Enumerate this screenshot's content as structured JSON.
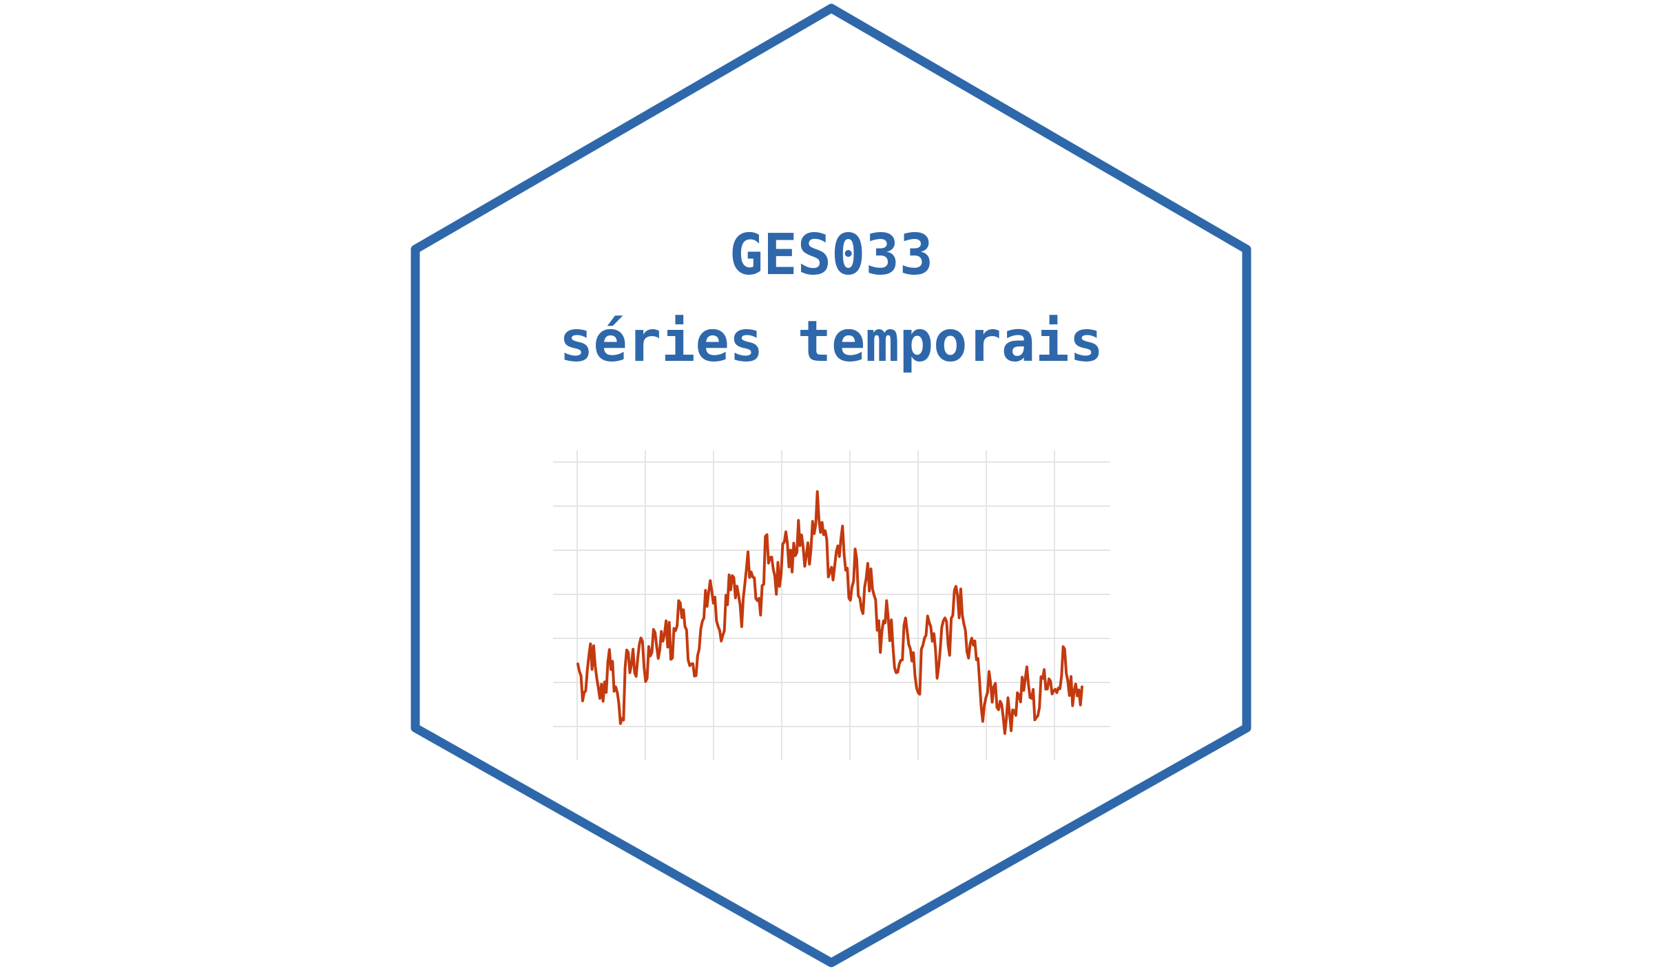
{
  "logo": {
    "title_line1": "GES033",
    "title_line2": "séries temporais"
  },
  "colors": {
    "hexagon_stroke": "#2E68AA",
    "title_text": "#2E68AA",
    "series_line": "#C33A0F",
    "grid": "#E4E4E4",
    "background": "#FFFFFF"
  },
  "chart_data": {
    "type": "line",
    "title": "",
    "xlabel": "",
    "ylabel": "",
    "grid": true,
    "axis_labels_visible": false,
    "xlim": [
      0,
      480
    ],
    "ylim": [
      0,
      10
    ],
    "series": [
      {
        "x": [
          0,
          6,
          12,
          18,
          24,
          30,
          36,
          42,
          48,
          54,
          60,
          66,
          72,
          78,
          84,
          90,
          96,
          102,
          108,
          114,
          120,
          126,
          132,
          138,
          144,
          150,
          156,
          162,
          168,
          174,
          180,
          186,
          192,
          198,
          204,
          210,
          216,
          222,
          228,
          234,
          240,
          246,
          252,
          258,
          264,
          270,
          276,
          282,
          288,
          294,
          300,
          306,
          312,
          318,
          324,
          330,
          336,
          342,
          348,
          354,
          360,
          366,
          372,
          378,
          384,
          390,
          396,
          402,
          408,
          414,
          420,
          426,
          432,
          438,
          444,
          450,
          456,
          462,
          468,
          474,
          480
        ],
        "values": [
          2.9,
          1.9,
          3.6,
          2.4,
          1.6,
          3.4,
          2.1,
          1.0,
          3.3,
          2.6,
          3.8,
          2.4,
          4.1,
          3.4,
          4.4,
          3.1,
          5.1,
          4.2,
          2.9,
          3.2,
          4.5,
          5.8,
          4.4,
          3.9,
          6.0,
          5.2,
          4.2,
          6.8,
          5.9,
          4.6,
          7.4,
          6.2,
          5.6,
          7.5,
          6.1,
          7.9,
          6.3,
          6.9,
          8.9,
          7.4,
          6.1,
          6.8,
          7.7,
          5.2,
          6.9,
          4.8,
          6.4,
          5.3,
          3.3,
          5.1,
          3.5,
          2.9,
          4.5,
          3.0,
          1.9,
          3.8,
          4.2,
          2.4,
          4.4,
          3.2,
          5.6,
          4.6,
          3.1,
          3.7,
          1.4,
          1.9,
          2.1,
          1.6,
          1.0,
          1.3,
          1.8,
          2.4,
          1.7,
          1.1,
          2.7,
          2.3,
          1.9,
          3.5,
          1.8,
          2.2,
          2.1
        ]
      }
    ]
  }
}
